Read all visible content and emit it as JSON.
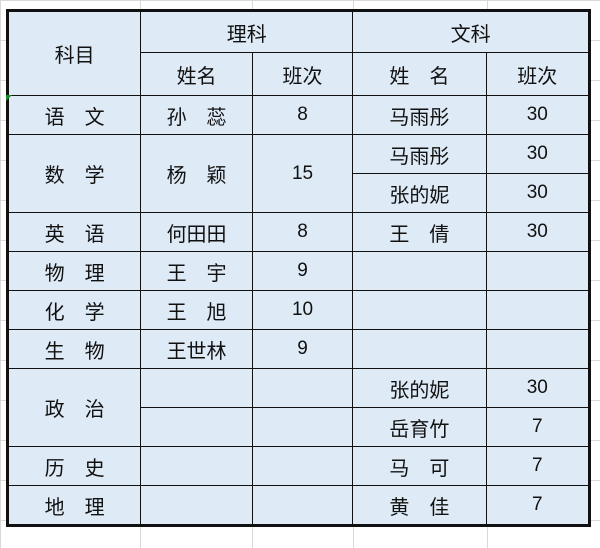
{
  "header": {
    "subject": "科目",
    "science": "理科",
    "arts": "文科",
    "science_name": "姓名",
    "science_rank": "班次",
    "arts_name": "姓　名",
    "arts_rank": "班次"
  },
  "rows": [
    {
      "subject": "语　文",
      "sci_name": "孙　蕊",
      "sci_rank": "8",
      "arts_name": "马雨彤",
      "arts_rank": "30"
    },
    {
      "subject": "数　学",
      "sci_name": "杨　颖",
      "sci_rank": "15",
      "arts_name": "马雨彤",
      "arts_rank": "30",
      "arts_name2": "张的妮",
      "arts_rank2": "30"
    },
    {
      "subject": "英　语",
      "sci_name": "何田田",
      "sci_rank": "8",
      "arts_name": "王　倩",
      "arts_rank": "30"
    },
    {
      "subject": "物　理",
      "sci_name": "王　宇",
      "sci_rank": "9",
      "arts_name": "",
      "arts_rank": ""
    },
    {
      "subject": "化　学",
      "sci_name": "王　旭",
      "sci_rank": "10",
      "arts_name": "",
      "arts_rank": ""
    },
    {
      "subject": "生　物",
      "sci_name": "王世林",
      "sci_rank": "9",
      "arts_name": "",
      "arts_rank": ""
    },
    {
      "subject": "政　治",
      "sci_name": "",
      "sci_rank": "",
      "arts_name": "张的妮",
      "arts_rank": "30",
      "arts_name2": "岳育竹",
      "arts_rank2": "7"
    },
    {
      "subject": "历　史",
      "sci_name": "",
      "sci_rank": "",
      "arts_name": "马　可",
      "arts_rank": "7"
    },
    {
      "subject": "地　理",
      "sci_name": "",
      "sci_rank": "",
      "arts_name": "黄　佳",
      "arts_rank": "7"
    }
  ],
  "colors": {
    "cell_fill": "#deeaf6",
    "border": "#111111",
    "gridline": "#d9d9d9"
  }
}
